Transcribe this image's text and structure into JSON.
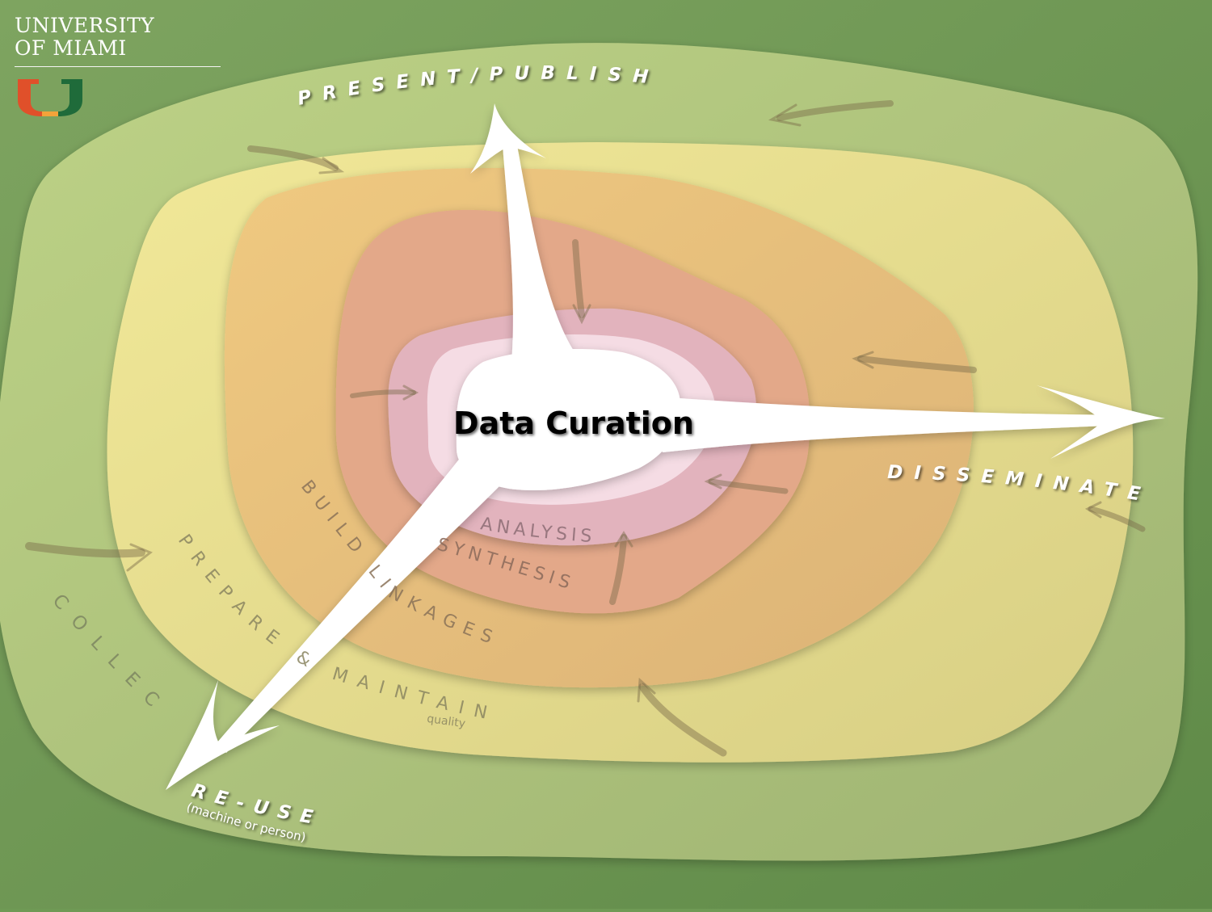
{
  "logo": {
    "line1": "UNIVERSITY",
    "line2": "OF MIAMI",
    "mark": "U",
    "mark_colors": {
      "orange": "#e0502a",
      "green": "#1f6b3a"
    }
  },
  "center": {
    "label": "Data Curation"
  },
  "stages": {
    "present_publish": "PRESENT/PUBLISH",
    "disseminate": "DISSEMINATE",
    "reuse": "RE-USE",
    "reuse_note": "(machine or person)",
    "collect": "COLLECT",
    "prepare_maintain": "PREPARE & MAINTAIN",
    "quality": "quality",
    "build_linkages": "BUILD LINKAGES",
    "synthesis": "SYNTHESIS",
    "analysis": "ANALYSIS"
  },
  "colors": {
    "background": "#6f9a55",
    "ring_outer": "#b3c97e",
    "ring_yellow": "#ede493",
    "ring_orange": "#ecc47e",
    "ring_salmon": "#e3a787",
    "ring_pink": "#e3b5be",
    "ring_lightpink": "#f5dde4",
    "core": "#ffffff"
  }
}
